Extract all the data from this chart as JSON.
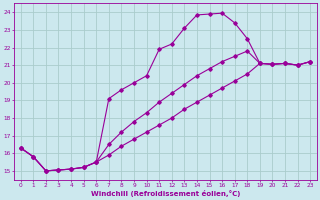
{
  "xlabel": "Windchill (Refroidissement éolien,°C)",
  "bg_color": "#cce8ee",
  "grid_color": "#aacccc",
  "line_color": "#990099",
  "xlim": [
    -0.5,
    23.5
  ],
  "ylim": [
    14.5,
    24.5
  ],
  "yticks": [
    15,
    16,
    17,
    18,
    19,
    20,
    21,
    22,
    23,
    24
  ],
  "xticks": [
    0,
    1,
    2,
    3,
    4,
    5,
    6,
    7,
    8,
    9,
    10,
    11,
    12,
    13,
    14,
    15,
    16,
    17,
    18,
    19,
    20,
    21,
    22,
    23
  ],
  "line1_x": [
    0,
    1,
    2,
    3,
    4,
    5,
    6,
    7,
    8,
    9,
    10,
    11,
    12,
    13,
    14,
    15,
    16,
    17,
    18,
    19,
    20,
    21,
    22,
    23
  ],
  "line1_y": [
    16.3,
    15.8,
    15.0,
    15.05,
    15.1,
    15.2,
    15.5,
    19.1,
    19.6,
    20.0,
    20.4,
    21.9,
    22.2,
    23.1,
    23.85,
    23.9,
    23.95,
    23.4,
    22.5,
    21.1,
    21.05,
    21.1,
    21.0,
    21.2
  ],
  "line2_x": [
    0,
    1,
    2,
    3,
    4,
    5,
    6,
    7,
    8,
    9,
    10,
    11,
    12,
    13,
    14,
    15,
    16,
    17,
    18,
    19,
    20,
    21,
    22,
    23
  ],
  "line2_y": [
    16.3,
    15.8,
    15.0,
    15.05,
    15.1,
    15.2,
    15.5,
    16.5,
    17.2,
    17.8,
    18.3,
    18.9,
    19.4,
    19.9,
    20.4,
    20.8,
    21.2,
    21.5,
    21.8,
    21.1,
    21.05,
    21.1,
    21.0,
    21.2
  ],
  "line3_x": [
    0,
    1,
    2,
    3,
    4,
    5,
    6,
    7,
    8,
    9,
    10,
    11,
    12,
    13,
    14,
    15,
    16,
    17,
    18,
    19,
    20,
    21,
    22,
    23
  ],
  "line3_y": [
    16.3,
    15.8,
    15.0,
    15.05,
    15.1,
    15.2,
    15.5,
    15.9,
    16.4,
    16.8,
    17.2,
    17.6,
    18.0,
    18.5,
    18.9,
    19.3,
    19.7,
    20.1,
    20.5,
    21.1,
    21.05,
    21.1,
    21.0,
    21.2
  ]
}
